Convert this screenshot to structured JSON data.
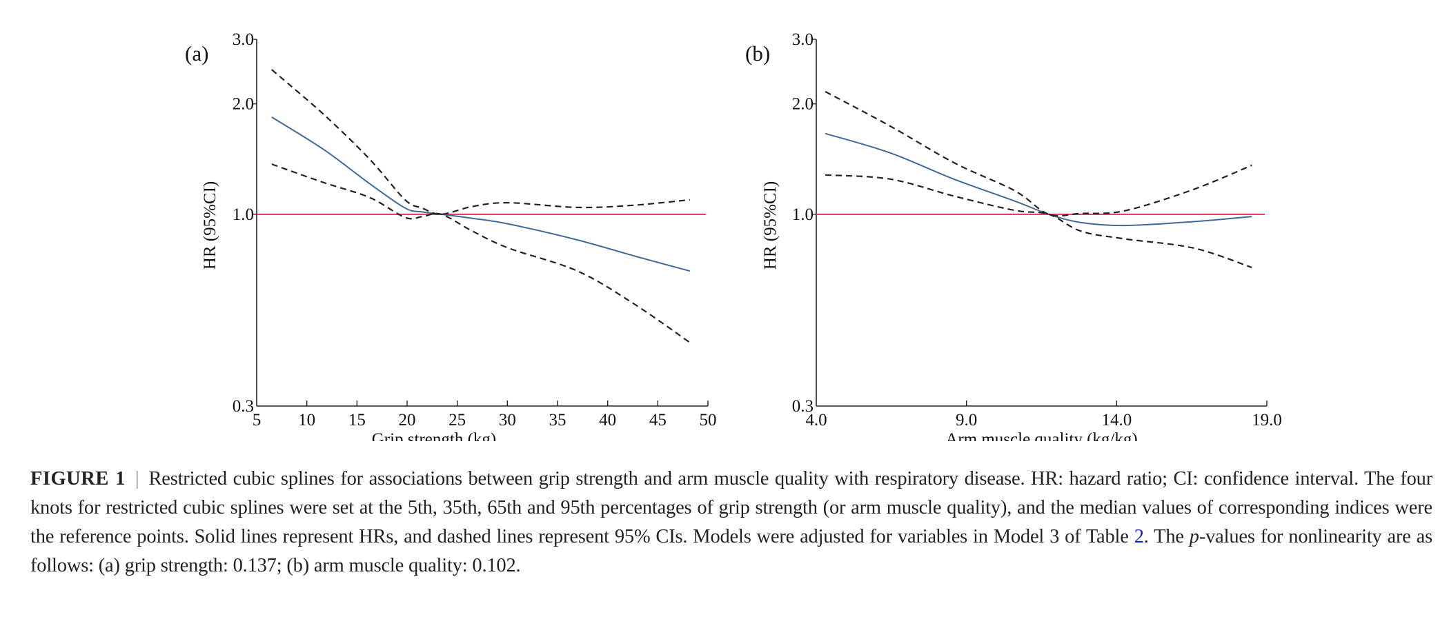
{
  "chart_data": [
    {
      "type": "line",
      "panel_label": "(a)",
      "xlabel": "Grip strength (kg)",
      "ylabel": "HR (95%CI)",
      "yscale": "log",
      "xlim": [
        5,
        50
      ],
      "ylim": [
        0.3,
        3.0
      ],
      "xticks": [
        "5",
        "10",
        "15",
        "20",
        "25",
        "30",
        "35",
        "40",
        "45",
        "50"
      ],
      "xtick_values": [
        5,
        10,
        15,
        20,
        25,
        30,
        35,
        40,
        45,
        50
      ],
      "yticks": [
        "0.3",
        "1.0",
        "2.0",
        "3.0"
      ],
      "ytick_values": [
        0.3,
        1.0,
        2.0,
        3.0
      ],
      "reference_line": 1.0,
      "reference_point_x": 23.4,
      "x": [
        6.5,
        11.7,
        16.3,
        19.8,
        21.5,
        23.4,
        26.5,
        30.1,
        37.0,
        42.7,
        48.2
      ],
      "series": [
        {
          "name": "HR",
          "style": "solid",
          "color": "#3d6a98",
          "values": [
            1.84,
            1.5,
            1.21,
            1.04,
            1.015,
            1.0,
            0.975,
            0.941,
            0.851,
            0.769,
            0.7
          ]
        },
        {
          "name": "95% CI upper",
          "style": "dashed",
          "color": "#222222",
          "values": [
            2.48,
            1.87,
            1.41,
            1.095,
            1.04,
            1.0,
            1.05,
            1.075,
            1.044,
            1.059,
            1.095
          ]
        },
        {
          "name": "95% CI lower",
          "style": "dashed",
          "color": "#222222",
          "values": [
            1.37,
            1.22,
            1.11,
            0.98,
            0.985,
            1.0,
            0.9,
            0.809,
            0.7,
            0.568,
            0.447
          ]
        }
      ],
      "reference_color": "#d9335a"
    },
    {
      "type": "line",
      "panel_label": "(b)",
      "xlabel": "Arm muscle quality (kg/kg)",
      "ylabel": "HR (95%CI)",
      "yscale": "log",
      "xlim": [
        4.0,
        19.0
      ],
      "ylim": [
        0.3,
        3.0
      ],
      "xticks": [
        "4.0",
        "9.0",
        "14.0",
        "19.0"
      ],
      "xtick_values": [
        4.0,
        9.0,
        14.0,
        19.0
      ],
      "yticks": [
        "0.3",
        "1.0",
        "2.0",
        "3.0"
      ],
      "ytick_values": [
        0.3,
        1.0,
        2.0,
        3.0
      ],
      "reference_line": 1.0,
      "reference_point_x": 11.74,
      "x": [
        4.3,
        6.46,
        8.6,
        10.6,
        11.74,
        12.8,
        14.26,
        16.56,
        18.5
      ],
      "series": [
        {
          "name": "HR",
          "style": "solid",
          "color": "#3d6a98",
          "values": [
            1.66,
            1.47,
            1.245,
            1.087,
            1.0,
            0.95,
            0.932,
            0.955,
            0.986
          ]
        },
        {
          "name": "95% CI upper",
          "style": "dashed",
          "color": "#222222",
          "values": [
            2.16,
            1.74,
            1.38,
            1.16,
            1.0,
            1.005,
            1.022,
            1.169,
            1.36
          ]
        },
        {
          "name": "95% CI lower",
          "style": "dashed",
          "color": "#222222",
          "values": [
            1.28,
            1.247,
            1.12,
            1.025,
            1.0,
            0.9,
            0.857,
            0.809,
            0.716
          ]
        }
      ],
      "reference_color": "#d9335a"
    }
  ],
  "caption": {
    "label": "FIGURE 1",
    "separator": "|",
    "text_1": "Restricted cubic splines for associations between grip strength and arm muscle quality with respiratory disease. HR: hazard ratio; CI: confidence interval. The four knots for restricted cubic splines were set at the 5th, 35th, 65th and 95th percentages of grip strength (or arm muscle quality), and the median values of corresponding indices were the reference points. Solid lines represent HRs, and dashed lines represent 95% CIs. Models were adjusted for variables in Model 3 of Table ",
    "table_link": "2",
    "text_2": ". The ",
    "p_italic": "p",
    "text_3": "-values for nonlinearity are as follows: (a) grip strength: 0.137; (b) arm muscle quality: 0.102."
  }
}
